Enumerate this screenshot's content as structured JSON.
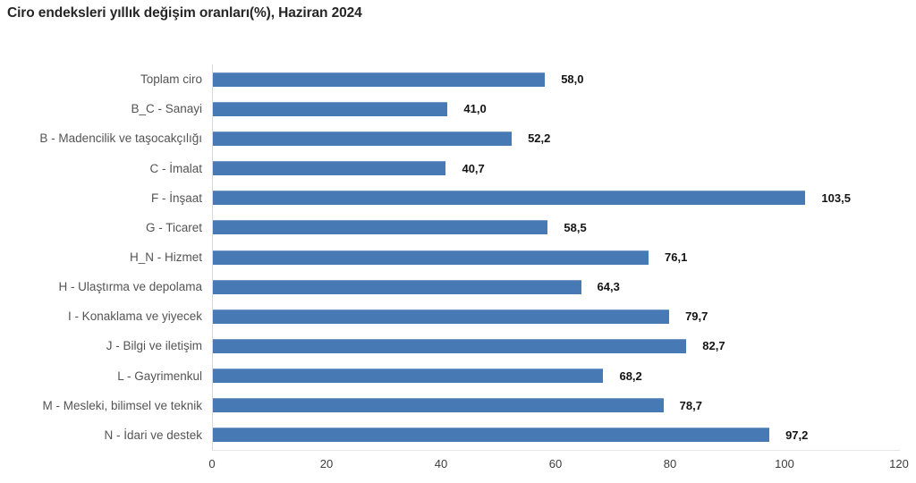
{
  "page": {
    "background": "#ffffff"
  },
  "chart_data": {
    "type": "bar",
    "orientation": "horizontal",
    "title": "Ciro endeksleri yıllık değişim oranları(%), Haziran 2024",
    "categories": [
      "Toplam ciro",
      "B_C - Sanayi",
      "B - Madencilik ve taşocakçılığı",
      "C - İmalat",
      "F - İnşaat",
      "G - Ticaret",
      "H_N - Hizmet",
      "H - Ulaştırma ve depolama",
      "I - Konaklama ve yiyecek",
      "J - Bilgi ve iletişim",
      "L - Gayrimenkul",
      "M - Mesleki, bilimsel ve teknik",
      "N - İdari ve destek"
    ],
    "values": [
      58.0,
      41.0,
      52.2,
      40.7,
      103.5,
      58.5,
      76.1,
      64.3,
      79.7,
      82.7,
      68.2,
      78.7,
      97.2
    ],
    "value_labels": [
      "58,0",
      "41,0",
      "52,2",
      "40,7",
      "103,5",
      "58,5",
      "76,1",
      "64,3",
      "79,7",
      "82,7",
      "68,2",
      "78,7",
      "97,2"
    ],
    "xlabel": "",
    "ylabel": "",
    "xlim": [
      0,
      120
    ],
    "xticks": [
      0,
      20,
      40,
      60,
      80,
      100,
      120
    ],
    "xtick_labels": [
      "0",
      "20",
      "40",
      "60",
      "80",
      "100",
      "120"
    ],
    "bar_color": "#4779b4",
    "grid": "off",
    "legend": "none"
  }
}
